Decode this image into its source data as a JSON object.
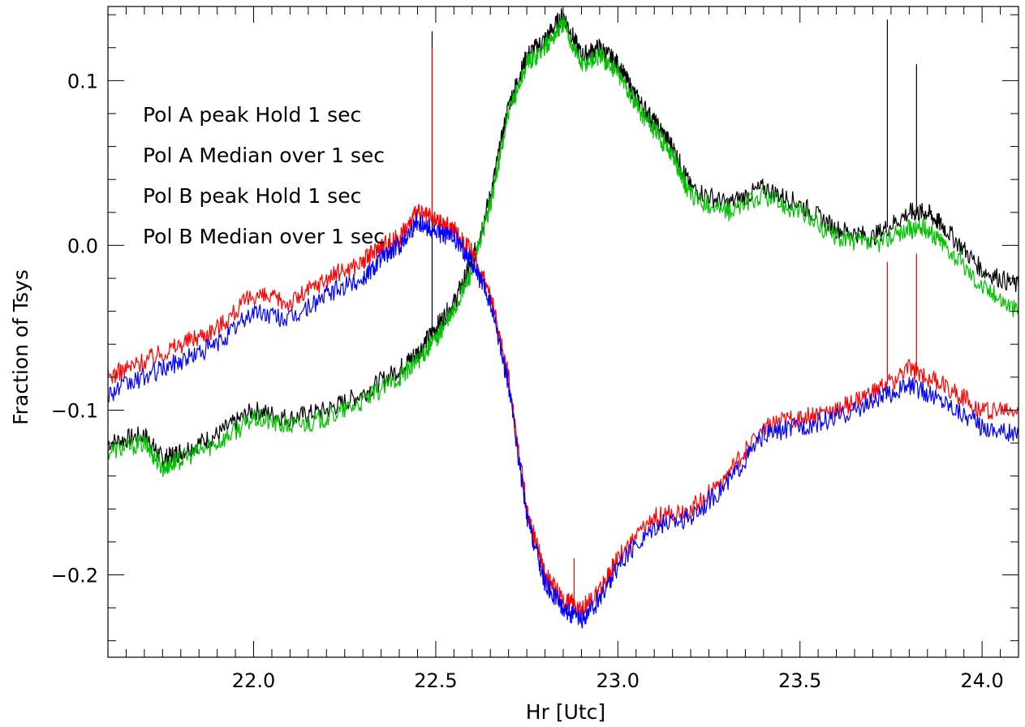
{
  "chart_data": {
    "type": "line",
    "title": "",
    "xlabel": "Hr [Utc]",
    "ylabel": "Fraction of Tsys",
    "xlim": [
      21.6,
      24.1
    ],
    "ylim": [
      -0.25,
      0.145
    ],
    "x_ticks": [
      "22.0",
      "22.5",
      "23.0",
      "23.5",
      "24.0"
    ],
    "y_ticks": [
      "−0.2",
      "−0.1",
      "0.0",
      "0.1"
    ],
    "x_tick_values": [
      22.0,
      22.5,
      23.0,
      23.5,
      24.0
    ],
    "y_tick_values": [
      -0.2,
      -0.1,
      0.0,
      0.1
    ],
    "grid": false,
    "legend_placement": "top-left",
    "series": [
      {
        "name": "Pol A peak Hold 1 sec",
        "color": "#000000",
        "x": [
          21.6,
          21.7,
          21.75,
          21.8,
          21.9,
          22.0,
          22.1,
          22.2,
          22.3,
          22.4,
          22.45,
          22.5,
          22.55,
          22.6,
          22.65,
          22.7,
          22.75,
          22.8,
          22.85,
          22.9,
          22.95,
          23.0,
          23.05,
          23.1,
          23.15,
          23.2,
          23.3,
          23.4,
          23.5,
          23.6,
          23.7,
          23.8,
          23.85,
          23.9,
          24.0,
          24.1
        ],
        "y": [
          -0.12,
          -0.115,
          -0.13,
          -0.125,
          -0.115,
          -0.1,
          -0.105,
          -0.1,
          -0.09,
          -0.075,
          -0.065,
          -0.05,
          -0.035,
          -0.01,
          0.03,
          0.085,
          0.115,
          0.125,
          0.14,
          0.115,
          0.12,
          0.11,
          0.09,
          0.075,
          0.06,
          0.035,
          0.025,
          0.035,
          0.025,
          0.01,
          0.005,
          0.02,
          0.02,
          0.01,
          -0.015,
          -0.025
        ],
        "spikes": [
          [
            22.49,
            0.13
          ],
          [
            23.74,
            0.137
          ],
          [
            23.82,
            0.11
          ]
        ]
      },
      {
        "name": "Pol A Median over 1 sec",
        "color": "#00c000",
        "x": [
          21.6,
          21.7,
          21.75,
          21.8,
          21.9,
          22.0,
          22.1,
          22.2,
          22.3,
          22.4,
          22.45,
          22.5,
          22.55,
          22.6,
          22.65,
          22.7,
          22.75,
          22.8,
          22.85,
          22.9,
          22.95,
          23.0,
          23.05,
          23.1,
          23.15,
          23.2,
          23.3,
          23.4,
          23.5,
          23.6,
          23.7,
          23.8,
          23.85,
          23.9,
          24.0,
          24.1
        ],
        "y": [
          -0.125,
          -0.12,
          -0.135,
          -0.13,
          -0.12,
          -0.105,
          -0.11,
          -0.105,
          -0.095,
          -0.08,
          -0.07,
          -0.057,
          -0.04,
          -0.015,
          0.025,
          0.08,
          0.11,
          0.12,
          0.135,
          0.11,
          0.115,
          0.105,
          0.085,
          0.07,
          0.055,
          0.03,
          0.02,
          0.03,
          0.02,
          0.005,
          0.0,
          0.01,
          0.01,
          0.0,
          -0.025,
          -0.04
        ],
        "spikes": []
      },
      {
        "name": "Pol B peak Hold 1 sec",
        "color": "#ff0000",
        "x": [
          21.6,
          21.7,
          21.8,
          21.9,
          22.0,
          22.1,
          22.2,
          22.3,
          22.35,
          22.4,
          22.45,
          22.5,
          22.55,
          22.6,
          22.65,
          22.7,
          22.75,
          22.8,
          22.85,
          22.9,
          22.95,
          23.0,
          23.1,
          23.2,
          23.3,
          23.4,
          23.5,
          23.6,
          23.7,
          23.8,
          23.9,
          24.0,
          24.1
        ],
        "y": [
          -0.08,
          -0.07,
          -0.06,
          -0.05,
          -0.03,
          -0.035,
          -0.02,
          -0.01,
          0.0,
          0.005,
          0.02,
          0.015,
          0.01,
          -0.005,
          -0.03,
          -0.08,
          -0.16,
          -0.2,
          -0.215,
          -0.22,
          -0.21,
          -0.19,
          -0.165,
          -0.16,
          -0.14,
          -0.11,
          -0.105,
          -0.1,
          -0.09,
          -0.075,
          -0.085,
          -0.1,
          -0.1
        ],
        "spikes": [
          [
            22.49,
            0.12
          ],
          [
            22.88,
            -0.19
          ],
          [
            23.74,
            -0.01
          ],
          [
            23.82,
            -0.005
          ]
        ]
      },
      {
        "name": "Pol B Median over 1 sec",
        "color": "#0000ff",
        "x": [
          21.6,
          21.7,
          21.8,
          21.9,
          22.0,
          22.1,
          22.2,
          22.3,
          22.35,
          22.4,
          22.45,
          22.5,
          22.55,
          22.6,
          22.65,
          22.7,
          22.75,
          22.8,
          22.85,
          22.9,
          22.95,
          23.0,
          23.1,
          23.2,
          23.3,
          23.4,
          23.5,
          23.6,
          23.7,
          23.8,
          23.9,
          24.0,
          24.1
        ],
        "y": [
          -0.09,
          -0.08,
          -0.07,
          -0.06,
          -0.04,
          -0.045,
          -0.03,
          -0.02,
          -0.008,
          0.0,
          0.015,
          0.008,
          0.005,
          -0.01,
          -0.035,
          -0.085,
          -0.165,
          -0.205,
          -0.22,
          -0.228,
          -0.215,
          -0.195,
          -0.17,
          -0.165,
          -0.145,
          -0.115,
          -0.11,
          -0.105,
          -0.095,
          -0.085,
          -0.095,
          -0.11,
          -0.115
        ],
        "spikes": []
      }
    ]
  }
}
